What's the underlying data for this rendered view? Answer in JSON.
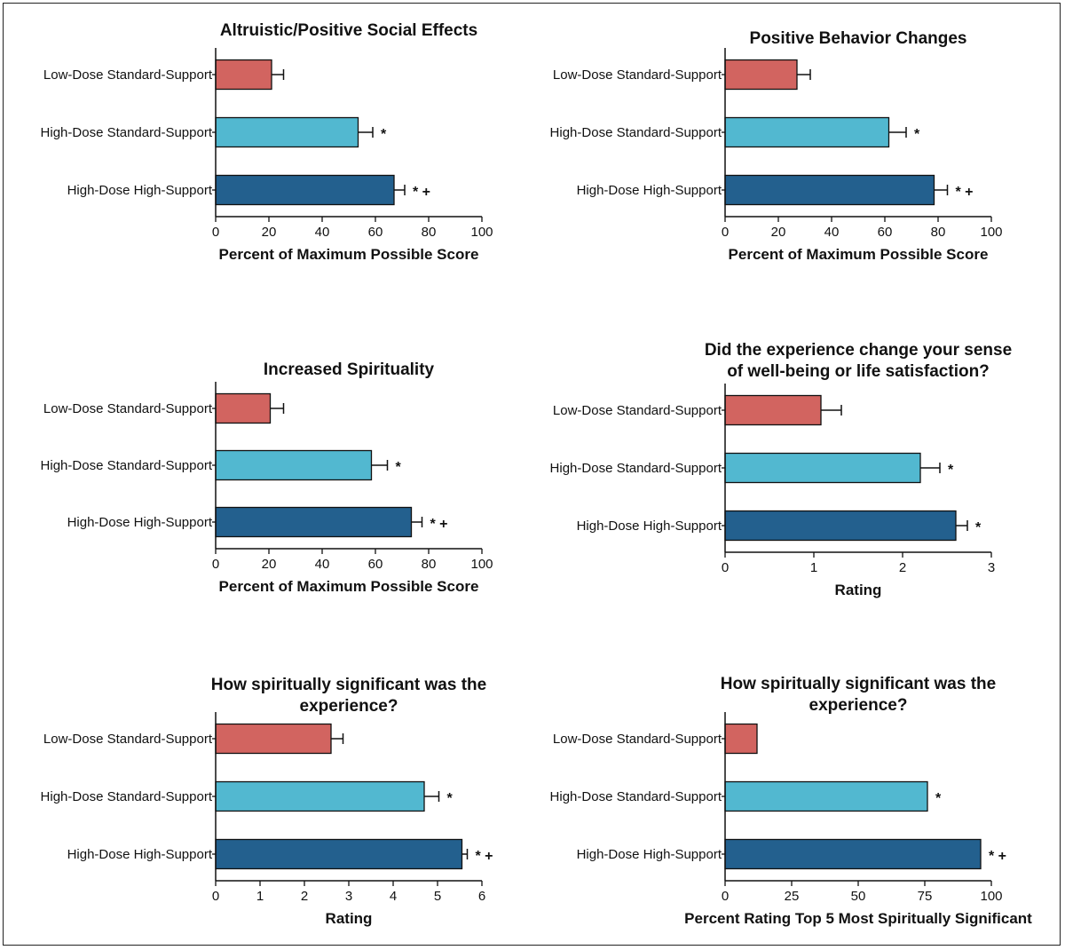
{
  "colors": {
    "low_dose_standard": "#D26460",
    "high_dose_standard": "#52B8D0",
    "high_dose_high": "#23608E",
    "axis": "#111111"
  },
  "chart_data": [
    {
      "type": "bar",
      "orientation": "horizontal",
      "title": [
        "Altruistic/Positive Social Effects"
      ],
      "xlabel": "Percent of Maximum Possible Score",
      "categories": [
        "Low-Dose Standard-Support",
        "High-Dose Standard-Support",
        "High-Dose High-Support"
      ],
      "values": [
        21,
        53.5,
        67
      ],
      "errors": [
        4.5,
        5.5,
        4
      ],
      "significance": [
        "",
        "*",
        "*+"
      ],
      "xlim": [
        0,
        100
      ],
      "xticks": [
        0,
        20,
        40,
        60,
        80,
        100
      ]
    },
    {
      "type": "bar",
      "orientation": "horizontal",
      "title": [
        "Positive Behavior Changes"
      ],
      "xlabel": "Percent of Maximum Possible Score",
      "categories": [
        "Low-Dose Standard-Support",
        "High-Dose Standard-Support",
        "High-Dose High-Support"
      ],
      "values": [
        27,
        61.5,
        78.5
      ],
      "errors": [
        5,
        6.5,
        5
      ],
      "significance": [
        "",
        "*",
        "*+"
      ],
      "xlim": [
        0,
        100
      ],
      "xticks": [
        0,
        20,
        40,
        60,
        80,
        100
      ]
    },
    {
      "type": "bar",
      "orientation": "horizontal",
      "title": [
        "Increased Spirituality"
      ],
      "xlabel": "Percent of Maximum Possible Score",
      "categories": [
        "Low-Dose Standard-Support",
        "High-Dose Standard-Support",
        "High-Dose High-Support"
      ],
      "values": [
        20.5,
        58.5,
        73.5
      ],
      "errors": [
        5,
        6,
        4
      ],
      "significance": [
        "",
        "*",
        "*+"
      ],
      "xlim": [
        0,
        100
      ],
      "xticks": [
        0,
        20,
        40,
        60,
        80,
        100
      ]
    },
    {
      "type": "bar",
      "orientation": "horizontal",
      "title": [
        "Did the experience change your sense",
        "of well-being or life satisfaction?"
      ],
      "xlabel": "Rating",
      "categories": [
        "Low-Dose Standard-Support",
        "High-Dose Standard-Support",
        "High-Dose High-Support"
      ],
      "values": [
        1.08,
        2.2,
        2.6
      ],
      "errors": [
        0.23,
        0.22,
        0.13
      ],
      "significance": [
        "",
        "*",
        "*"
      ],
      "xlim": [
        0,
        3
      ],
      "xticks": [
        0,
        1,
        2,
        3
      ]
    },
    {
      "type": "bar",
      "orientation": "horizontal",
      "title": [
        "How spiritually significant was the",
        "experience?"
      ],
      "xlabel": "Rating",
      "categories": [
        "Low-Dose Standard-Support",
        "High-Dose Standard-Support",
        "High-Dose High-Support"
      ],
      "values": [
        2.6,
        4.7,
        5.55
      ],
      "errors": [
        0.27,
        0.33,
        0.12
      ],
      "significance": [
        "",
        "*",
        "*+"
      ],
      "xlim": [
        0,
        6
      ],
      "xticks": [
        0,
        1,
        2,
        3,
        4,
        5,
        6
      ]
    },
    {
      "type": "bar",
      "orientation": "horizontal",
      "title": [
        "How spiritually significant was the",
        "experience?"
      ],
      "xlabel": "Percent Rating Top 5 Most Spiritually Significant",
      "categories": [
        "Low-Dose Standard-Support",
        "High-Dose Standard-Support",
        "High-Dose High-Support"
      ],
      "values": [
        12,
        76,
        96
      ],
      "errors": [
        0,
        0,
        0
      ],
      "significance": [
        "",
        "*",
        "*+"
      ],
      "xlim": [
        0,
        100
      ],
      "xticks": [
        0,
        25,
        50,
        75,
        100
      ]
    }
  ]
}
